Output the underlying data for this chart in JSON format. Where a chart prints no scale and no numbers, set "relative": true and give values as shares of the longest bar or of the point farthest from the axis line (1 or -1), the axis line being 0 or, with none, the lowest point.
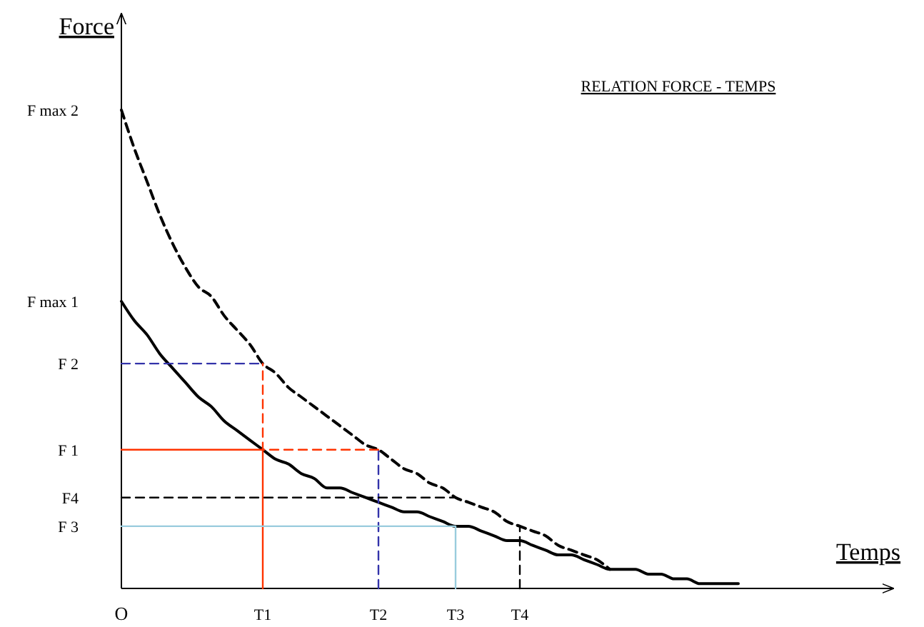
{
  "chart_data": {
    "type": "line",
    "title": "RELATION  FORCE - TEMPS",
    "xlabel": "Temps",
    "ylabel": "Force",
    "relative": true,
    "categories": [
      "O",
      null,
      null,
      null,
      null,
      null,
      null,
      null,
      null,
      null,
      null,
      "T1",
      null,
      null,
      null,
      null,
      null,
      null,
      null,
      null,
      "T2",
      null,
      null,
      null,
      null,
      null,
      "T3",
      null,
      null,
      null,
      null,
      "T4",
      null,
      null,
      null,
      null,
      null,
      null,
      null,
      null,
      null,
      null,
      null,
      null,
      null,
      null,
      null,
      null,
      null,
      null,
      null,
      null,
      null,
      null,
      null,
      null,
      null,
      null,
      null,
      null
    ],
    "annotations": [
      {
        "text": "F max 2",
        "x": "O",
        "y": 1
      },
      {
        "text": "F max 1",
        "x": "O",
        "y": 0.6
      },
      {
        "text": "F 2",
        "x": "O",
        "y": 0.47
      },
      {
        "text": "F 1",
        "x": "O",
        "y": 0.29
      },
      {
        "text": "F4",
        "x": "O",
        "y": 0.19
      },
      {
        "text": "F 3",
        "x": "O",
        "y": 0.13
      }
    ],
    "series": [
      {
        "color": "#000000",
        "line_style": "solid",
        "values": [
          0.6,
          0.56,
          0.53,
          0.49,
          0.46,
          0.43,
          0.4,
          0.38,
          0.35,
          0.33,
          0.31,
          0.29,
          0.27,
          0.26,
          0.24,
          0.23,
          0.21,
          0.21,
          0.2,
          0.19,
          0.18,
          0.17,
          0.16,
          0.16,
          0.15,
          0.14,
          0.13,
          0.13,
          0.12,
          0.11,
          0.1,
          0.1,
          0.09,
          0.08,
          0.07,
          0.07,
          0.06,
          0.05,
          0.04,
          0.04,
          0.04,
          0.03,
          0.03,
          0.02,
          0.02,
          0.01,
          0.01,
          0.01,
          0.01,
          null,
          null,
          null,
          null,
          null,
          null,
          null,
          null,
          null,
          null,
          null
        ]
      },
      {
        "color": "#000000",
        "line_style": "dashed",
        "values": [
          1,
          0.92,
          0.85,
          0.78,
          0.72,
          0.67,
          0.63,
          0.61,
          0.57,
          0.54,
          0.51,
          0.47,
          0.45,
          0.42,
          0.4,
          0.38,
          0.36,
          0.34,
          0.32,
          0.3,
          0.29,
          0.27,
          0.25,
          0.24,
          0.22,
          0.21,
          0.19,
          0.18,
          0.17,
          0.16,
          0.14,
          0.13,
          0.12,
          0.11,
          0.09,
          0.08,
          0.07,
          0.06,
          0.04,
          null,
          null,
          null,
          null,
          null,
          null,
          null,
          null,
          null,
          null,
          null,
          null,
          null,
          null,
          null,
          null,
          null,
          null,
          null,
          null,
          null
        ]
      },
      {
        "color": "#ff3300",
        "line_style": "solid",
        "x": [
          "O",
          "T1",
          "T1"
        ],
        "values": [
          0.29,
          0.29,
          0
        ]
      },
      {
        "color": "#ff3300",
        "line_style": "dashed",
        "x": [
          "T2",
          "T1",
          "T1"
        ],
        "values": [
          0.29,
          0.29,
          0.47
        ]
      },
      {
        "color": "#3333aa",
        "line_style": "dashed",
        "x": [
          "O",
          "T1"
        ],
        "values": [
          0.47,
          0.47
        ]
      },
      {
        "color": "#3333aa",
        "line_style": "dashed",
        "x": [
          "T2",
          "T2"
        ],
        "values": [
          0,
          0.29
        ]
      },
      {
        "color": "#000000",
        "line_style": "dashed",
        "x": [
          "O",
          "T3"
        ],
        "values": [
          0.19,
          0.19
        ]
      },
      {
        "color": "#000000",
        "line_style": "dashed",
        "x": [
          "T4",
          "T4"
        ],
        "values": [
          0,
          0.13
        ]
      },
      {
        "color": "#99ccdd",
        "line_style": "solid",
        "x": [
          "O",
          "T3",
          "T3"
        ],
        "values": [
          0.13,
          0.13,
          0
        ]
      }
    ]
  }
}
